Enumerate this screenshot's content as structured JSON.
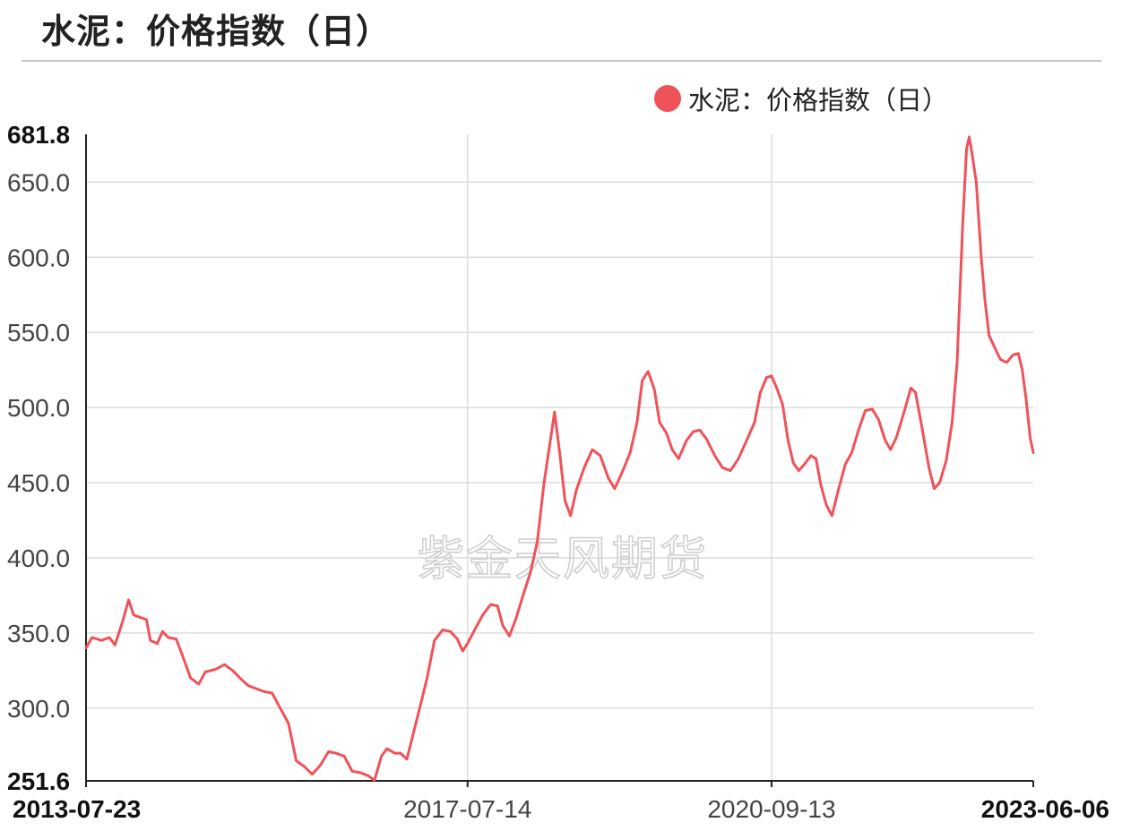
{
  "title": "水泥：价格指数（日）",
  "watermark": "紫金天风期货",
  "colors": {
    "series": "#f0525a",
    "grid": "#dcdcdc",
    "axis": "#222222"
  },
  "chart_data": {
    "type": "line",
    "title": "水泥：价格指数（日）",
    "legend_position": "top-right",
    "grid": true,
    "x_range": [
      "2013-07-23",
      "2023-06-06"
    ],
    "ylim": [
      251.6,
      681.8
    ],
    "x_ticks": [
      {
        "label": "2013-07-23",
        "bold": true
      },
      {
        "label": "2017-07-14",
        "bold": false
      },
      {
        "label": "2020-09-13",
        "bold": false
      },
      {
        "label": "2023-06-06",
        "bold": true
      }
    ],
    "y_ticks": [
      {
        "label": "251.6",
        "value": 251.6,
        "bold": true
      },
      {
        "label": "300.0",
        "value": 300.0,
        "bold": false
      },
      {
        "label": "350.0",
        "value": 350.0,
        "bold": false
      },
      {
        "label": "400.0",
        "value": 400.0,
        "bold": false
      },
      {
        "label": "450.0",
        "value": 450.0,
        "bold": false
      },
      {
        "label": "500.0",
        "value": 500.0,
        "bold": false
      },
      {
        "label": "550.0",
        "value": 550.0,
        "bold": false
      },
      {
        "label": "600.0",
        "value": 600.0,
        "bold": false
      },
      {
        "label": "650.0",
        "value": 650.0,
        "bold": false
      },
      {
        "label": "681.8",
        "value": 681.8,
        "bold": true
      }
    ],
    "series": [
      {
        "name": "水泥：价格指数（日）",
        "points": [
          [
            "2013-07-23",
            340
          ],
          [
            "2013-08-15",
            347
          ],
          [
            "2013-09-20",
            345
          ],
          [
            "2013-10-20",
            347
          ],
          [
            "2013-11-10",
            342
          ],
          [
            "2013-12-10",
            358
          ],
          [
            "2014-01-01",
            372
          ],
          [
            "2014-01-20",
            362
          ],
          [
            "2014-02-20",
            360
          ],
          [
            "2014-03-10",
            359
          ],
          [
            "2014-03-25",
            345
          ],
          [
            "2014-04-20",
            343
          ],
          [
            "2014-05-10",
            351
          ],
          [
            "2014-06-01",
            347
          ],
          [
            "2014-07-01",
            346
          ],
          [
            "2014-07-25",
            335
          ],
          [
            "2014-08-25",
            320
          ],
          [
            "2014-09-25",
            316
          ],
          [
            "2014-10-20",
            324
          ],
          [
            "2014-12-01",
            326
          ],
          [
            "2015-01-01",
            329
          ],
          [
            "2015-02-01",
            325
          ],
          [
            "2015-03-01",
            320
          ],
          [
            "2015-04-01",
            315
          ],
          [
            "2015-05-01",
            313
          ],
          [
            "2015-06-01",
            311
          ],
          [
            "2015-07-01",
            310
          ],
          [
            "2015-08-01",
            300
          ],
          [
            "2015-09-01",
            290
          ],
          [
            "2015-10-01",
            265
          ],
          [
            "2015-11-01",
            261
          ],
          [
            "2015-12-01",
            256
          ],
          [
            "2016-01-01",
            262
          ],
          [
            "2016-02-01",
            271
          ],
          [
            "2016-03-01",
            270
          ],
          [
            "2016-04-01",
            268
          ],
          [
            "2016-05-01",
            258
          ],
          [
            "2016-06-01",
            257
          ],
          [
            "2016-07-01",
            255
          ],
          [
            "2016-07-25",
            252
          ],
          [
            "2016-08-20",
            268
          ],
          [
            "2016-09-10",
            273
          ],
          [
            "2016-10-10",
            270
          ],
          [
            "2016-11-01",
            270
          ],
          [
            "2016-11-25",
            266
          ],
          [
            "2016-12-15",
            280
          ],
          [
            "2017-01-10",
            298
          ],
          [
            "2017-02-10",
            320
          ],
          [
            "2017-03-10",
            345
          ],
          [
            "2017-04-10",
            352
          ],
          [
            "2017-05-10",
            351
          ],
          [
            "2017-06-05",
            346
          ],
          [
            "2017-06-25",
            338
          ],
          [
            "2017-07-14",
            343
          ],
          [
            "2017-08-10",
            352
          ],
          [
            "2017-09-10",
            362
          ],
          [
            "2017-10-10",
            369
          ],
          [
            "2017-11-05",
            368
          ],
          [
            "2017-11-25",
            355
          ],
          [
            "2017-12-20",
            348
          ],
          [
            "2018-01-15",
            360
          ],
          [
            "2018-02-10",
            375
          ],
          [
            "2018-03-10",
            390
          ],
          [
            "2018-04-05",
            410
          ],
          [
            "2018-05-01",
            450
          ],
          [
            "2018-05-25",
            478
          ],
          [
            "2018-06-10",
            497
          ],
          [
            "2018-07-01",
            468
          ],
          [
            "2018-07-20",
            438
          ],
          [
            "2018-08-10",
            428
          ],
          [
            "2018-09-01",
            445
          ],
          [
            "2018-10-01",
            460
          ],
          [
            "2018-11-01",
            472
          ],
          [
            "2018-12-01",
            468
          ],
          [
            "2019-01-01",
            453
          ],
          [
            "2019-01-25",
            446
          ],
          [
            "2019-02-25",
            458
          ],
          [
            "2019-03-25",
            470
          ],
          [
            "2019-04-20",
            490
          ],
          [
            "2019-05-10",
            518
          ],
          [
            "2019-06-01",
            524
          ],
          [
            "2019-06-25",
            512
          ],
          [
            "2019-07-15",
            490
          ],
          [
            "2019-08-10",
            483
          ],
          [
            "2019-09-01",
            472
          ],
          [
            "2019-09-25",
            466
          ],
          [
            "2019-10-25",
            478
          ],
          [
            "2019-11-20",
            484
          ],
          [
            "2019-12-15",
            485
          ],
          [
            "2020-01-10",
            479
          ],
          [
            "2020-02-10",
            468
          ],
          [
            "2020-03-10",
            460
          ],
          [
            "2020-04-10",
            458
          ],
          [
            "2020-05-10",
            466
          ],
          [
            "2020-06-10",
            478
          ],
          [
            "2020-07-10",
            490
          ],
          [
            "2020-08-01",
            510
          ],
          [
            "2020-08-25",
            520
          ],
          [
            "2020-09-13",
            521
          ],
          [
            "2020-10-05",
            512
          ],
          [
            "2020-10-25",
            502
          ],
          [
            "2020-11-15",
            478
          ],
          [
            "2020-12-05",
            463
          ],
          [
            "2020-12-25",
            458
          ],
          [
            "2021-01-15",
            462
          ],
          [
            "2021-02-10",
            468
          ],
          [
            "2021-03-01",
            466
          ],
          [
            "2021-03-20",
            448
          ],
          [
            "2021-04-10",
            435
          ],
          [
            "2021-05-01",
            428
          ],
          [
            "2021-05-25",
            445
          ],
          [
            "2021-06-20",
            462
          ],
          [
            "2021-07-15",
            470
          ],
          [
            "2021-08-10",
            485
          ],
          [
            "2021-09-05",
            498
          ],
          [
            "2021-10-01",
            499
          ],
          [
            "2021-10-25",
            492
          ],
          [
            "2021-11-20",
            478
          ],
          [
            "2021-12-10",
            472
          ],
          [
            "2022-01-01",
            480
          ],
          [
            "2022-02-01",
            498
          ],
          [
            "2022-02-25",
            513
          ],
          [
            "2022-03-15",
            510
          ],
          [
            "2022-04-10",
            485
          ],
          [
            "2022-05-05",
            460
          ],
          [
            "2022-05-25",
            446
          ],
          [
            "2022-06-15",
            450
          ],
          [
            "2022-07-10",
            465
          ],
          [
            "2022-08-01",
            490
          ],
          [
            "2022-08-20",
            530
          ],
          [
            "2022-09-10",
            620
          ],
          [
            "2022-09-25",
            672
          ],
          [
            "2022-10-05",
            680
          ],
          [
            "2022-10-15",
            670
          ],
          [
            "2022-11-01",
            650
          ],
          [
            "2022-11-20",
            600
          ],
          [
            "2022-12-05",
            570
          ],
          [
            "2022-12-20",
            548
          ],
          [
            "2023-01-10",
            540
          ],
          [
            "2023-02-01",
            532
          ],
          [
            "2023-02-25",
            530
          ],
          [
            "2023-03-20",
            535
          ],
          [
            "2023-04-10",
            536
          ],
          [
            "2023-04-25",
            525
          ],
          [
            "2023-05-10",
            505
          ],
          [
            "2023-05-25",
            480
          ],
          [
            "2023-06-06",
            470
          ]
        ]
      }
    ]
  }
}
